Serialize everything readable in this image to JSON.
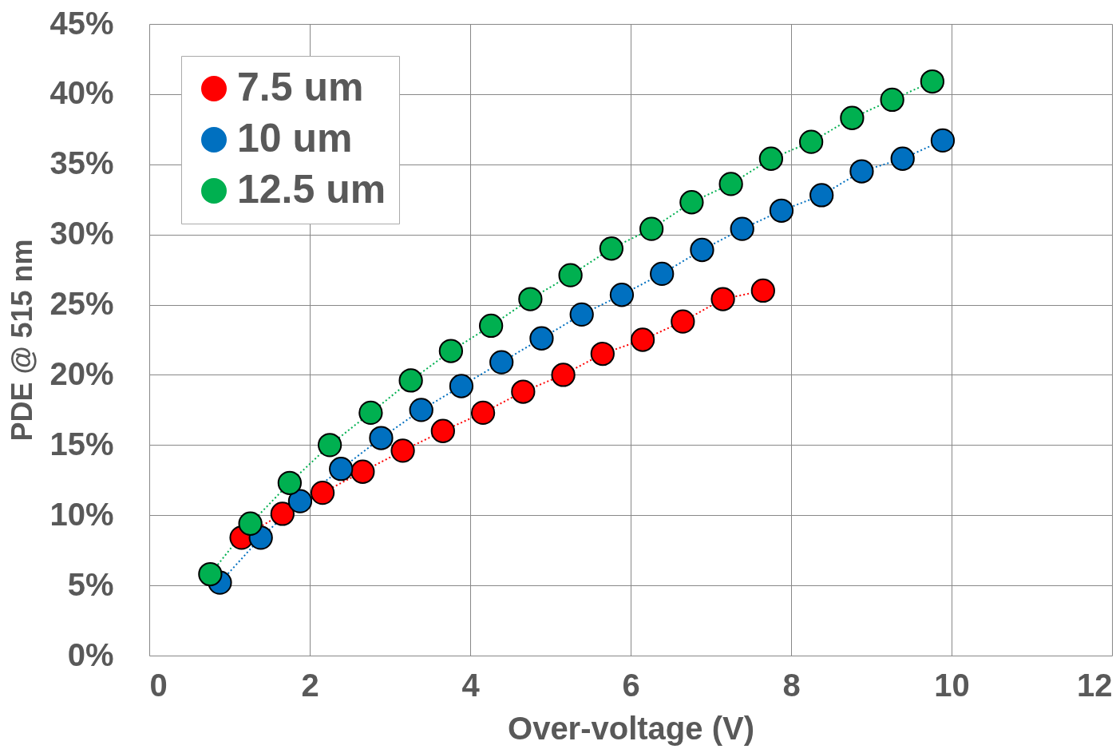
{
  "chart_data": {
    "type": "line",
    "xlabel": "Over-voltage (V)",
    "ylabel": "PDE @ 515 nm",
    "marker": "circle",
    "line_style": "dotted",
    "grid": true,
    "legend": "top left",
    "xlim": [
      0,
      12
    ],
    "xticks": [
      0,
      2,
      4,
      6,
      8,
      10,
      12
    ],
    "ylim": [
      0,
      45
    ],
    "yticks": [
      {
        "value": 0,
        "label": "0%"
      },
      {
        "value": 5,
        "label": "5%"
      },
      {
        "value": 10,
        "label": "10%"
      },
      {
        "value": 15,
        "label": "15%"
      },
      {
        "value": 20,
        "label": "20%"
      },
      {
        "value": 25,
        "label": "25%"
      },
      {
        "value": 30,
        "label": "30%"
      },
      {
        "value": 35,
        "label": "35%"
      },
      {
        "value": 40,
        "label": "40%"
      },
      {
        "value": 45,
        "label": "45%"
      }
    ],
    "series": [
      {
        "name": "7.5 um",
        "color": "#ff0000",
        "x": [
          1.15,
          1.66,
          2.16,
          2.66,
          3.16,
          3.66,
          4.16,
          4.66,
          5.16,
          5.65,
          6.15,
          6.65,
          7.15,
          7.65
        ],
        "values": [
          8.4,
          10.1,
          11.6,
          13.1,
          14.6,
          16.0,
          17.3,
          18.8,
          20.0,
          21.5,
          22.5,
          23.8,
          25.4,
          26.0
        ]
      },
      {
        "name": "10 um",
        "color": "#0070c0",
        "x": [
          0.88,
          1.39,
          1.88,
          2.39,
          2.89,
          3.39,
          3.89,
          4.39,
          4.89,
          5.39,
          5.89,
          6.39,
          6.89,
          7.39,
          7.88,
          8.38,
          8.88,
          9.39,
          9.89
        ],
        "values": [
          5.2,
          8.4,
          11.0,
          13.3,
          15.5,
          17.5,
          19.2,
          20.9,
          22.6,
          24.3,
          25.7,
          27.2,
          28.9,
          30.4,
          31.7,
          32.8,
          34.5,
          35.4,
          36.7
        ]
      },
      {
        "name": "12.5 um",
        "color": "#00b050",
        "x": [
          0.76,
          1.26,
          1.75,
          2.25,
          2.76,
          3.26,
          3.76,
          4.26,
          4.75,
          5.25,
          5.76,
          6.26,
          6.76,
          7.25,
          7.75,
          8.25,
          8.76,
          9.26,
          9.76
        ],
        "values": [
          5.8,
          9.4,
          12.3,
          15.0,
          17.3,
          19.6,
          21.7,
          23.5,
          25.4,
          27.1,
          29.0,
          30.4,
          32.3,
          33.6,
          35.4,
          36.6,
          38.3,
          39.6,
          40.9
        ]
      }
    ]
  }
}
